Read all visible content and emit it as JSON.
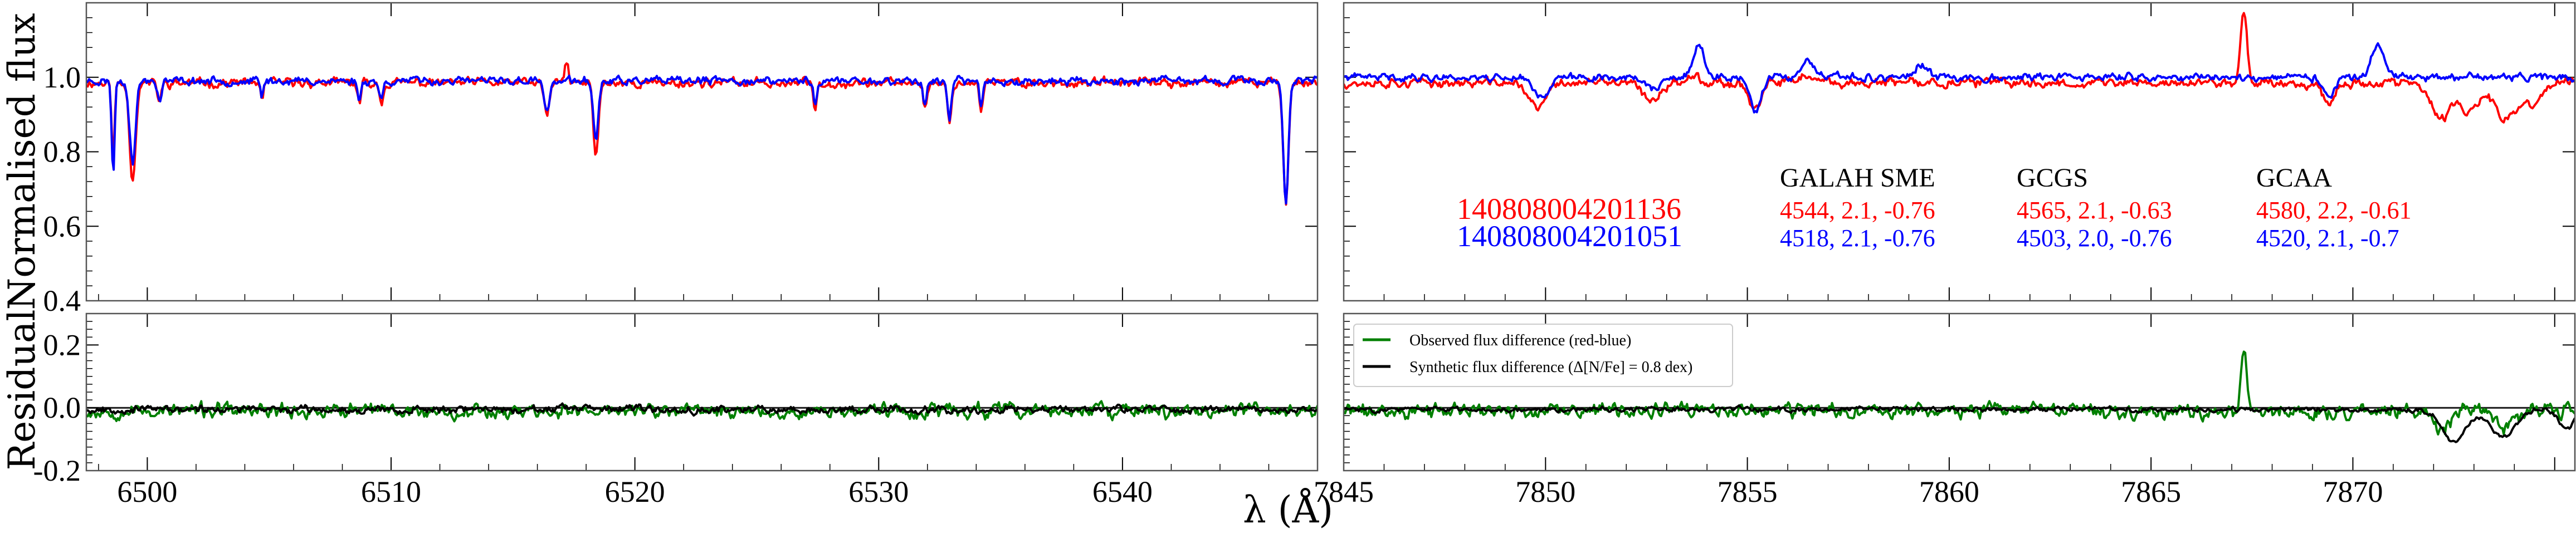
{
  "chart_data": {
    "type": "line",
    "x_label": "λ (Å)",
    "colors": {
      "red_star": "#ff0000",
      "blue_star": "#0000ff",
      "observed_diff": "#008000",
      "synthetic_diff": "#000000"
    },
    "panels": [
      {
        "id": "flux_left",
        "ylabel": "Normalised flux",
        "xlim": [
          6497.5,
          6548
        ],
        "ylim": [
          0.4,
          1.2
        ],
        "yticks": [
          0.4,
          0.6,
          0.8,
          1.0
        ],
        "yticklabels": [
          "0.4",
          "0.6",
          "0.8",
          "1.0"
        ],
        "series": [
          {
            "name": "140808004201136",
            "color": "#ff0000",
            "base": 0.985,
            "lines": [
              [
                6498.6,
                0.2,
                0.06
              ],
              [
                6499.4,
                0.26,
                0.12
              ],
              [
                6500.5,
                0.05,
                0.08
              ],
              [
                6504.7,
                0.05,
                0.06
              ],
              [
                6508.7,
                0.06,
                0.07
              ],
              [
                6509.6,
                0.05,
                0.08
              ],
              [
                6516.4,
                0.09,
                0.1
              ],
              [
                6518.4,
                0.2,
                0.1
              ],
              [
                6527.4,
                0.07,
                0.07
              ],
              [
                6531.9,
                0.07,
                0.07
              ],
              [
                6532.9,
                0.11,
                0.08
              ],
              [
                6534.2,
                0.07,
                0.07
              ],
              [
                6546.7,
                0.32,
                0.1
              ]
            ],
            "spikes": [
              [
                6517.2,
                0.06,
                0.07
              ]
            ],
            "noise": 0.016,
            "seed": 11
          },
          {
            "name": "140808004201051",
            "color": "#0000ff",
            "base": 0.99,
            "lines": [
              [
                6498.6,
                0.25,
                0.06
              ],
              [
                6499.4,
                0.22,
                0.12
              ],
              [
                6500.5,
                0.05,
                0.08
              ],
              [
                6504.7,
                0.04,
                0.06
              ],
              [
                6508.7,
                0.05,
                0.07
              ],
              [
                6509.6,
                0.05,
                0.08
              ],
              [
                6516.4,
                0.09,
                0.1
              ],
              [
                6518.4,
                0.16,
                0.1
              ],
              [
                6527.4,
                0.06,
                0.07
              ],
              [
                6531.9,
                0.07,
                0.07
              ],
              [
                6532.9,
                0.1,
                0.08
              ],
              [
                6534.2,
                0.07,
                0.07
              ],
              [
                6546.7,
                0.33,
                0.1
              ]
            ],
            "spikes": [],
            "noise": 0.014,
            "seed": 23
          }
        ]
      },
      {
        "id": "flux_right",
        "ylabel": "",
        "xlim": [
          7845,
          7875.5
        ],
        "ylim": [
          0.4,
          1.2
        ],
        "yticks": [
          0.4,
          0.6,
          0.8,
          1.0
        ],
        "yticklabels": [
          "",
          "",
          "",
          ""
        ],
        "series": [
          {
            "name": "140808004201136",
            "color": "#ff0000",
            "base": 0.985,
            "lines": [
              [
                7849.8,
                0.07,
                0.2
              ],
              [
                7852.6,
                0.05,
                0.2
              ],
              [
                7855.2,
                0.07,
                0.15
              ],
              [
                7869.4,
                0.05,
                0.15
              ],
              [
                7872.2,
                0.1,
                0.25
              ],
              [
                7872.9,
                0.08,
                0.2
              ],
              [
                7873.8,
                0.1,
                0.3
              ],
              [
                7874.5,
                0.05,
                0.2
              ]
            ],
            "spikes": [
              [
                7867.3,
                0.19,
                0.08
              ],
              [
                7853.7,
                0.03,
                0.12
              ],
              [
                7856.4,
                0.02,
                0.15
              ]
            ],
            "noise": 0.016,
            "seed": 37
          },
          {
            "name": "140808004201051",
            "color": "#0000ff",
            "base": 1.0,
            "lines": [
              [
                7849.9,
                0.05,
                0.2
              ],
              [
                7852.7,
                0.03,
                0.2
              ],
              [
                7855.2,
                0.09,
                0.15
              ],
              [
                7869.4,
                0.05,
                0.15
              ]
            ],
            "spikes": [
              [
                7853.8,
                0.09,
                0.12
              ],
              [
                7856.5,
                0.04,
                0.15
              ],
              [
                7870.6,
                0.08,
                0.15
              ],
              [
                7859.3,
                0.03,
                0.15
              ]
            ],
            "noise": 0.013,
            "seed": 41
          }
        ]
      },
      {
        "id": "resid_left",
        "ylabel": "Residual",
        "xlim": [
          6497.5,
          6548
        ],
        "ylim": [
          -0.2,
          0.3
        ],
        "yticks": [
          -0.2,
          0.0,
          0.2
        ],
        "yticklabels": [
          "-0.2",
          "0.0",
          "0.2"
        ],
        "xticks": [
          6500,
          6510,
          6520,
          6530,
          6540
        ],
        "xticklabels": [
          "6500",
          "6510",
          "6520",
          "6530",
          "6540"
        ],
        "series": [
          {
            "name": "Observed flux difference (red-blue)",
            "color": "#008000",
            "base": -0.01,
            "lines": [],
            "spikes": [],
            "noise": 0.03,
            "seed": 53
          },
          {
            "name": "Synthetic flux difference (Δ[N/Fe] = 0.8 dex)",
            "color": "#000000",
            "base": -0.005,
            "lines": [],
            "spikes": [],
            "noise": 0.015,
            "seed": 67
          }
        ]
      },
      {
        "id": "resid_right",
        "ylabel": "",
        "xlim": [
          7845,
          7875.5
        ],
        "ylim": [
          -0.2,
          0.3
        ],
        "yticks": [
          -0.2,
          0.0,
          0.2
        ],
        "yticklabels": [
          "",
          "",
          ""
        ],
        "xticks": [
          7845,
          7850,
          7855,
          7860,
          7865,
          7870
        ],
        "xticklabels": [
          "7845",
          "7850",
          "7855",
          "7860",
          "7865",
          "7870"
        ],
        "series": [
          {
            "name": "Observed flux difference (red-blue)",
            "color": "#008000",
            "base": -0.01,
            "lines": [
              [
                7872.2,
                0.06,
                0.25
              ],
              [
                7873.8,
                0.05,
                0.25
              ]
            ],
            "spikes": [
              [
                7867.3,
                0.18,
                0.08
              ]
            ],
            "noise": 0.03,
            "seed": 71
          },
          {
            "name": "Synthetic flux difference (Δ[N/Fe] = 0.8 dex)",
            "color": "#000000",
            "base": -0.005,
            "lines": [
              [
                7872.5,
                0.1,
                0.3
              ],
              [
                7873.7,
                0.09,
                0.3
              ],
              [
                7875.3,
                0.06,
                0.2
              ]
            ],
            "spikes": [],
            "noise": 0.01,
            "seed": 83
          }
        ]
      }
    ],
    "legend": {
      "position": "upper-left of right residual panel",
      "entries": [
        {
          "label": "Observed flux difference (red-blue)",
          "color": "#008000"
        },
        {
          "label": "Synthetic flux difference (Δ[N/Fe] = 0.8 dex)",
          "color": "#000000"
        }
      ]
    },
    "annotations": {
      "stars": [
        {
          "id": "140808004201136",
          "color": "#ff0000"
        },
        {
          "id": "140808004201051",
          "color": "#0000ff"
        }
      ],
      "pipelines": [
        {
          "name": "GALAH SME",
          "values": [
            "4544, 2.1, -0.76",
            "4518, 2.1, -0.76"
          ]
        },
        {
          "name": "GCGS",
          "values": [
            "4565, 2.1, -0.63",
            "4503, 2.0, -0.76"
          ]
        },
        {
          "name": "GCAA",
          "values": [
            "4580, 2.2, -0.61",
            "4520, 2.1, -0.7"
          ]
        }
      ]
    }
  }
}
